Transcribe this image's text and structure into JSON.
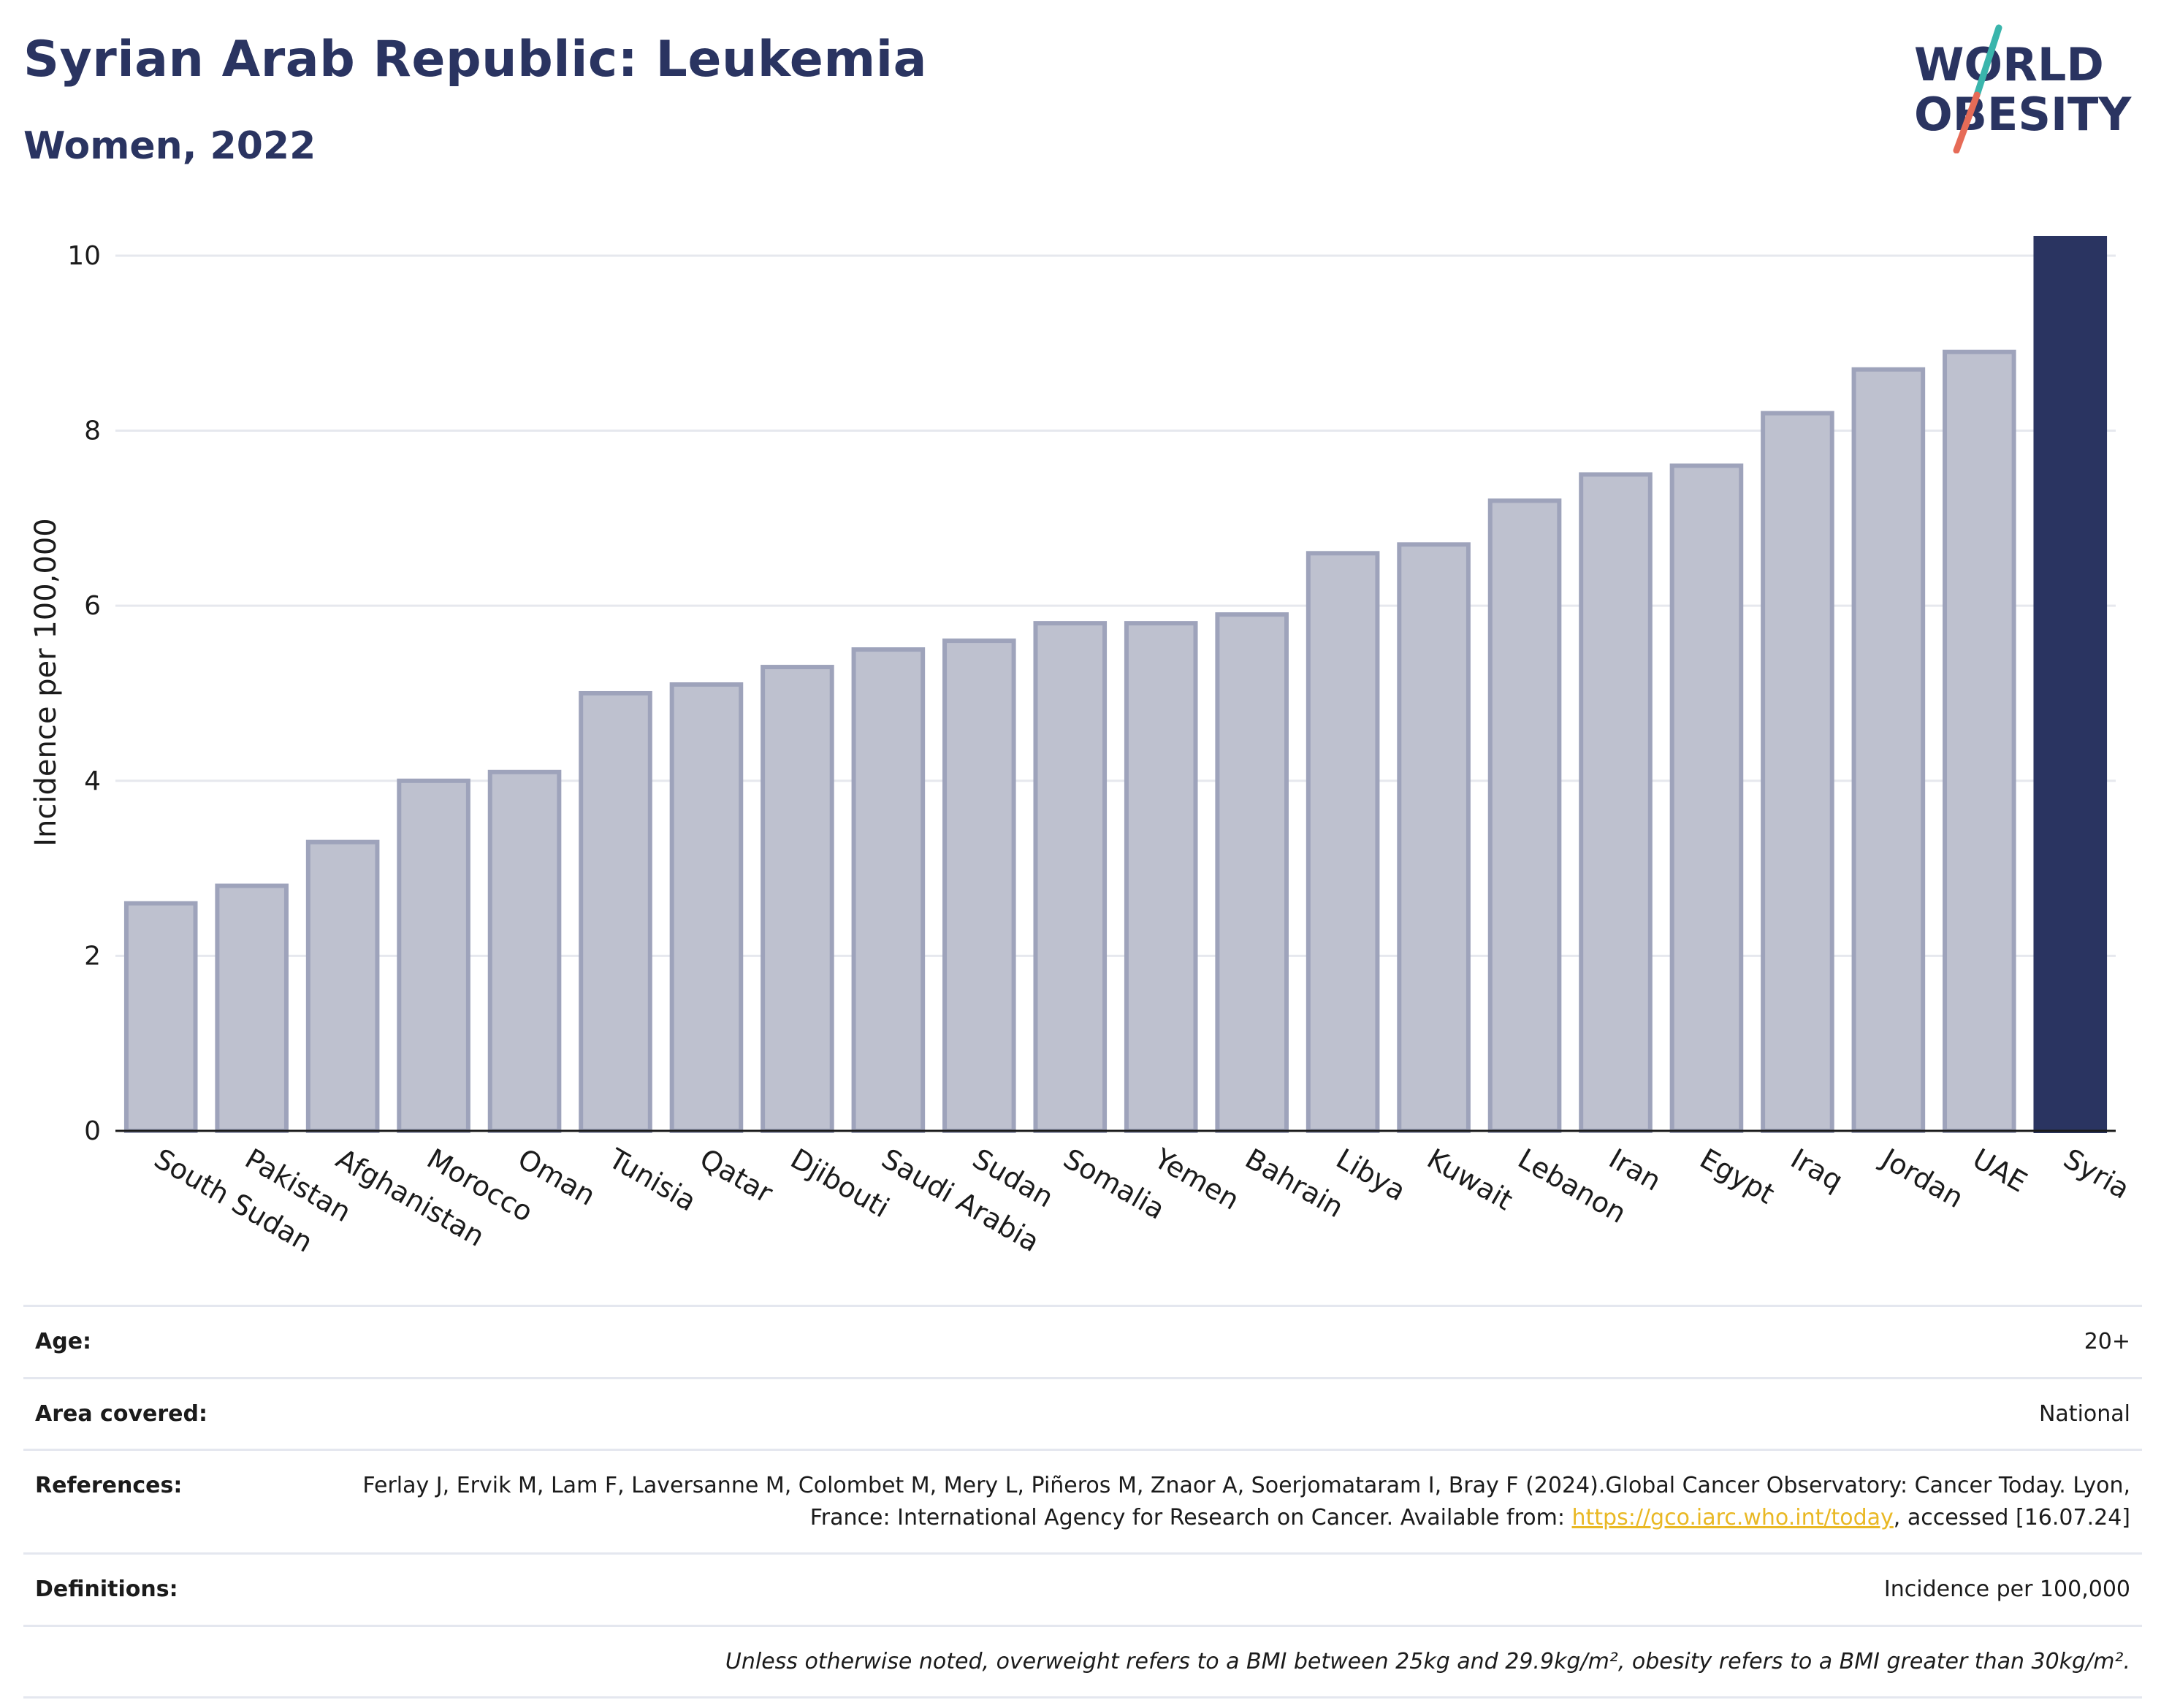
{
  "header": {
    "title": "Syrian Arab Republic: Leukemia",
    "subtitle": "Women, 2022"
  },
  "logo": {
    "line1": "WORLD",
    "line2": "OBESITY",
    "name": "world-obesity-logo"
  },
  "colors": {
    "highlight": "#2a3461",
    "bar_fill": "#bec1cf",
    "bar_stroke": "#9ea3bb",
    "grid": "#e6e8ee",
    "link": "#e9b824",
    "logo_teal": "#3ab5ac",
    "logo_coral": "#e66b57"
  },
  "chart_data": {
    "type": "bar",
    "title": "",
    "xlabel": "",
    "ylabel": "Incidence per 100,000",
    "ylim": [
      0,
      10.25
    ],
    "yticks": [
      0,
      2,
      4,
      6,
      8,
      10
    ],
    "grid": true,
    "categories": [
      "South Sudan",
      "Pakistan",
      "Afghanistan",
      "Morocco",
      "Oman",
      "Tunisia",
      "Qatar",
      "Djibouti",
      "Saudi Arabia",
      "Sudan",
      "Somalia",
      "Yemen",
      "Bahrain",
      "Libya",
      "Kuwait",
      "Lebanon",
      "Iran",
      "Egypt",
      "Iraq",
      "Jordan",
      "UAE",
      "Syria"
    ],
    "values": [
      2.6,
      2.8,
      3.3,
      4.0,
      4.1,
      5.0,
      5.1,
      5.3,
      5.5,
      5.6,
      5.8,
      5.8,
      5.9,
      6.6,
      6.7,
      7.2,
      7.5,
      7.6,
      8.2,
      8.7,
      8.9,
      10.2
    ],
    "highlight": "Syria"
  },
  "info": {
    "age_label": "Age:",
    "age_value": "20+",
    "area_label": "Area covered:",
    "area_value": "National",
    "references_label": "References:",
    "references_text_1": "Ferlay J, Ervik M, Lam F, Laversanne M, Colombet M, Mery L, Piñeros M, Znaor A, Soerjomataram I, Bray F (2024).Global Cancer Observatory: Cancer Today. Lyon, France: International Agency for Research on Cancer. Available from: ",
    "references_link": "https://gco.iarc.who.int/today",
    "references_text_2": ", accessed [16.07.24]",
    "definitions_label": "Definitions:",
    "definitions_value": "Incidence per 100,000",
    "note": "Unless otherwise noted, overweight refers to a BMI between 25kg and 29.9kg/m², obesity refers to a BMI greater than 30kg/m²."
  }
}
